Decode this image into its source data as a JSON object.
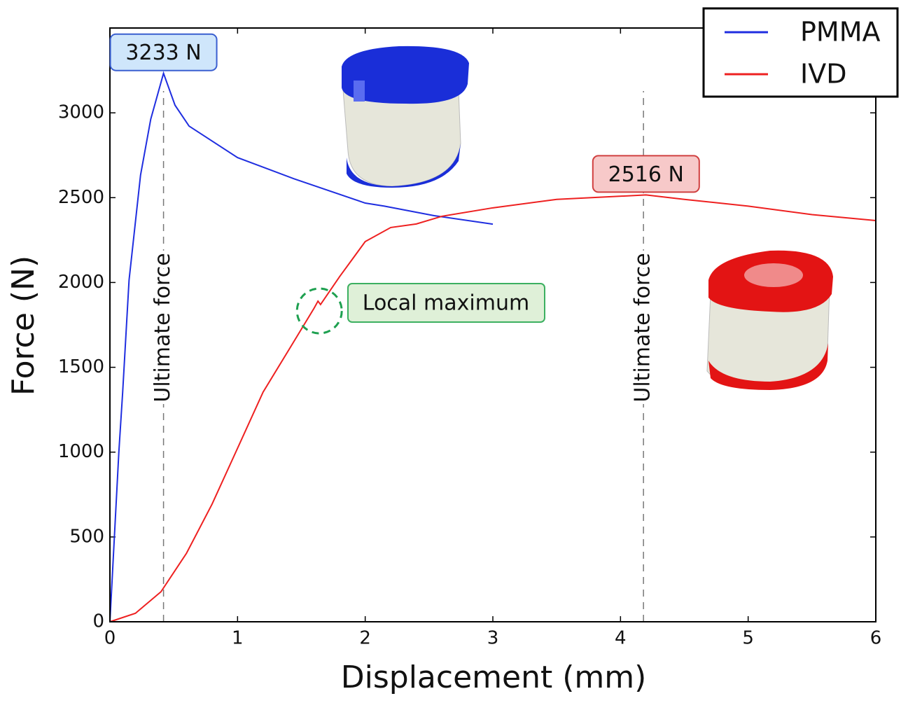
{
  "chart_data": {
    "type": "line",
    "x_label": "Displacement (mm)",
    "y_label": "Force (N)",
    "xlim": [
      0,
      6
    ],
    "ylim": [
      0,
      3500
    ],
    "xticks": [
      0,
      1,
      2,
      3,
      4,
      5,
      6
    ],
    "yticks": [
      0,
      500,
      1000,
      1500,
      2000,
      2500,
      3000
    ],
    "grid": false,
    "legend": "upper right",
    "series": [
      {
        "name": "PMMA",
        "color": "#1f2ee0",
        "x": [
          0,
          0.07,
          0.1,
          0.15,
          0.24,
          0.32,
          0.42,
          0.51,
          0.62,
          1.0,
          1.44,
          2.0,
          2.15,
          2.54,
          3.0
        ],
        "values": [
          0,
          1000,
          1354,
          2014,
          2633,
          2963,
          3233,
          3045,
          2922,
          2736,
          2612,
          2468,
          2450,
          2394,
          2344
        ]
      },
      {
        "name": "IVD",
        "color": "#ee2020",
        "x": [
          0,
          0.2,
          0.4,
          0.6,
          0.8,
          1.0,
          1.2,
          1.4,
          1.6,
          1.63,
          1.65,
          1.8,
          2.0,
          2.2,
          2.4,
          2.6,
          3.0,
          3.5,
          4.2,
          4.5,
          5.0,
          5.5,
          6.0
        ],
        "values": [
          0,
          50,
          177,
          404,
          693,
          1023,
          1354,
          1601,
          1849,
          1890,
          1870,
          2035,
          2241,
          2324,
          2345,
          2390,
          2440,
          2490,
          2516,
          2490,
          2450,
          2400,
          2365
        ]
      }
    ],
    "peak_labels": [
      {
        "text": "3233 N",
        "x": 0.42,
        "y": 3233
      },
      {
        "text": "2516 N",
        "x": 4.2,
        "y": 2516
      }
    ],
    "vlines": [
      {
        "text": "Ultimate force",
        "x": 0.42
      },
      {
        "text": "Ultimate force",
        "x": 4.18
      }
    ],
    "callout": {
      "text": "Local maximum",
      "x": 1.63,
      "y": 1890
    }
  }
}
